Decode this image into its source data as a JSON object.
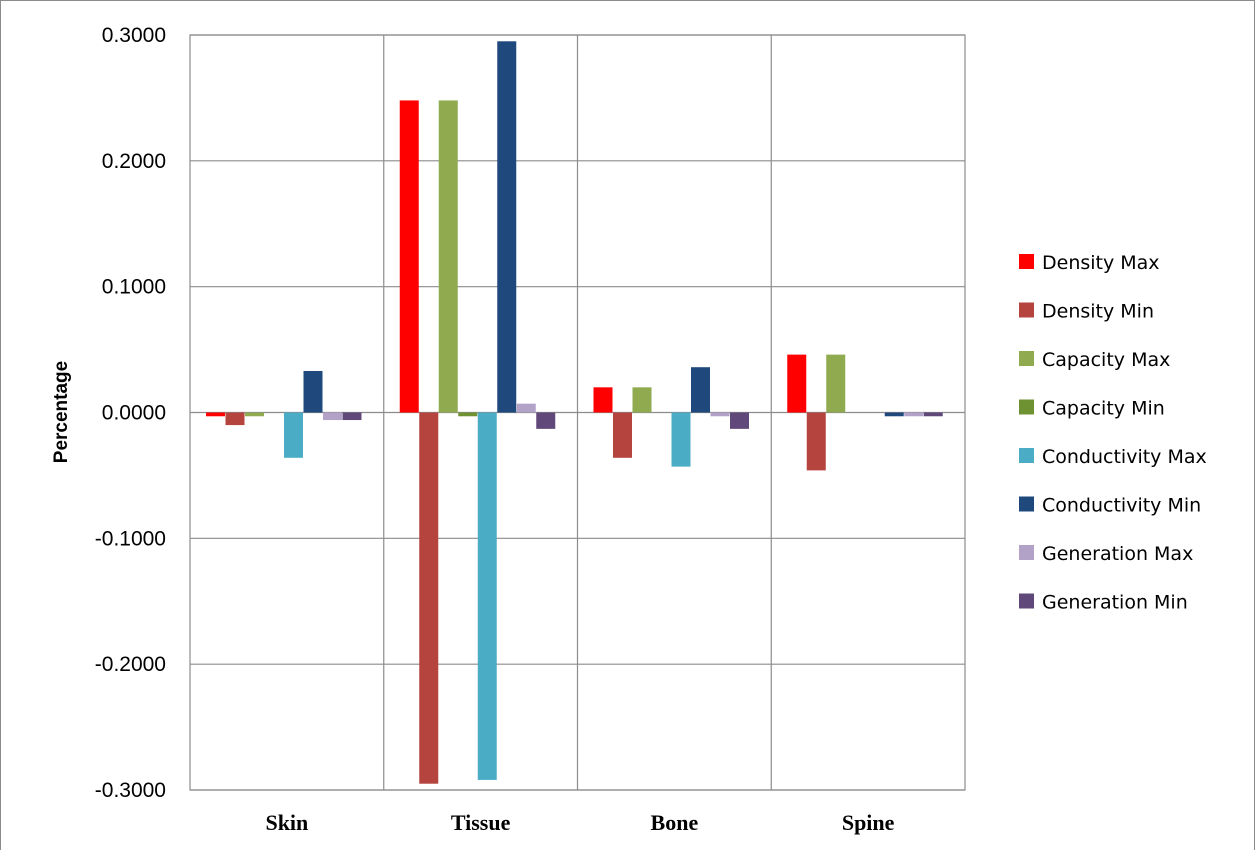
{
  "chart_data": {
    "type": "bar",
    "title": "",
    "xlabel": "",
    "ylabel": "Percentage",
    "ylim": [
      -0.3,
      0.3
    ],
    "y_ticks": [
      "0.3000",
      "0.2000",
      "0.1000",
      "0.0000",
      "-0.1000",
      "-0.2000",
      "-0.3000"
    ],
    "y_tick_values": [
      0.3,
      0.2,
      0.1,
      0.0,
      -0.1,
      -0.2,
      -0.3
    ],
    "grid": true,
    "legend_position": "right",
    "categories": [
      "Skin",
      "Tissue",
      "Bone",
      "Spine"
    ],
    "series": [
      {
        "name": "Density Max",
        "color": "#ff0000",
        "values": [
          -0.003,
          0.248,
          0.02,
          0.046
        ]
      },
      {
        "name": "Density Min",
        "color": "#b5443f",
        "values": [
          -0.01,
          -0.295,
          -0.036,
          -0.046
        ]
      },
      {
        "name": "Capacity Max",
        "color": "#8faa4f",
        "values": [
          -0.003,
          0.248,
          0.02,
          0.046
        ]
      },
      {
        "name": "Capacity Min",
        "color": "#6e9232",
        "values": [
          0.0,
          -0.003,
          0.0,
          0.0
        ]
      },
      {
        "name": "Conductivity Max",
        "color": "#4bacc6",
        "values": [
          -0.036,
          -0.292,
          -0.043,
          0.0
        ]
      },
      {
        "name": "Conductivity Min",
        "color": "#1f497d",
        "values": [
          0.033,
          0.295,
          0.036,
          -0.003
        ]
      },
      {
        "name": "Generation Max",
        "color": "#b3a2c7",
        "values": [
          -0.006,
          0.007,
          -0.003,
          -0.003
        ]
      },
      {
        "name": "Generation Min",
        "color": "#60497a",
        "values": [
          -0.006,
          -0.013,
          -0.013,
          -0.003
        ]
      }
    ]
  }
}
